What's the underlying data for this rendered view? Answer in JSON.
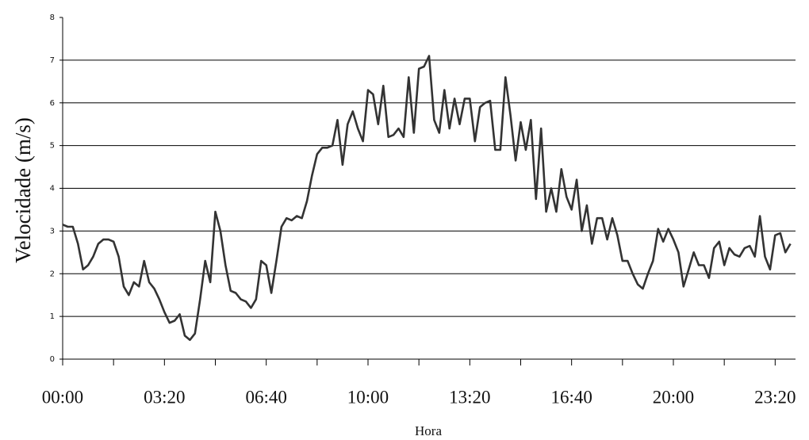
{
  "chart_data": {
    "type": "line",
    "x_label": "Hora",
    "y_label": "Velocidade (m/s)",
    "x": [
      0,
      10,
      20,
      30,
      40,
      50,
      60,
      70,
      80,
      90,
      100,
      110,
      120,
      130,
      140,
      150,
      160,
      170,
      180,
      190,
      200,
      210,
      220,
      230,
      240,
      250,
      260,
      270,
      280,
      290,
      300,
      310,
      320,
      330,
      340,
      350,
      360,
      370,
      380,
      390,
      400,
      410,
      420,
      430,
      440,
      450,
      460,
      470,
      480,
      490,
      500,
      510,
      520,
      530,
      540,
      550,
      560,
      570,
      580,
      590,
      600,
      610,
      620,
      630,
      640,
      650,
      660,
      670,
      680,
      690,
      700,
      710,
      720,
      730,
      740,
      750,
      760,
      770,
      780,
      790,
      800,
      810,
      820,
      830,
      840,
      850,
      860,
      870,
      880,
      890,
      900,
      910,
      920,
      930,
      940,
      950,
      960,
      970,
      980,
      990,
      1000,
      1010,
      1020,
      1030,
      1040,
      1050,
      1060,
      1070,
      1080,
      1090,
      1100,
      1110,
      1120,
      1130,
      1140,
      1150,
      1160,
      1170,
      1180,
      1190,
      1200,
      1210,
      1220,
      1230,
      1240,
      1250,
      1260,
      1270,
      1280,
      1290,
      1300,
      1310,
      1320,
      1330,
      1340,
      1350,
      1360,
      1370,
      1380,
      1390,
      1400,
      1410,
      1420,
      1430
    ],
    "series": [
      {
        "color": "#333333",
        "values": [
          3.15,
          3.1,
          3.1,
          2.7,
          2.1,
          2.2,
          2.4,
          2.7,
          2.8,
          2.8,
          2.75,
          2.4,
          1.7,
          1.5,
          1.8,
          1.7,
          2.3,
          1.8,
          1.65,
          1.4,
          1.1,
          0.85,
          0.9,
          1.05,
          0.55,
          0.45,
          0.6,
          1.4,
          2.3,
          1.8,
          3.45,
          3.0,
          2.2,
          1.6,
          1.55,
          1.4,
          1.35,
          1.2,
          1.4,
          2.3,
          2.2,
          1.55,
          2.3,
          3.1,
          3.3,
          3.25,
          3.35,
          3.3,
          3.7,
          4.3,
          4.8,
          4.95,
          4.95,
          5.0,
          5.6,
          4.55,
          5.5,
          5.8,
          5.4,
          5.1,
          6.3,
          6.2,
          5.5,
          6.4,
          5.2,
          5.25,
          5.4,
          5.2,
          6.6,
          5.3,
          6.8,
          6.85,
          7.1,
          5.6,
          5.3,
          6.3,
          5.4,
          6.1,
          5.5,
          6.1,
          6.1,
          5.1,
          5.9,
          6.0,
          6.05,
          4.9,
          4.9,
          6.6,
          5.7,
          4.65,
          5.55,
          4.9,
          5.6,
          3.75,
          5.4,
          3.45,
          4.0,
          3.45,
          4.45,
          3.8,
          3.5,
          4.2,
          3.0,
          3.6,
          2.7,
          3.3,
          3.3,
          2.8,
          3.3,
          2.9,
          2.3,
          2.3,
          2.0,
          1.75,
          1.65,
          2.0,
          2.3,
          3.05,
          2.75,
          3.05,
          2.8,
          2.5,
          1.7,
          2.1,
          2.5,
          2.2,
          2.2,
          1.9,
          2.6,
          2.75,
          2.2,
          2.6,
          2.45,
          2.4,
          2.6,
          2.65,
          2.4,
          3.35,
          2.4,
          2.1,
          2.9,
          2.95,
          2.5,
          2.7
        ]
      }
    ],
    "xlim": [
      0,
      1440
    ],
    "xticks": [
      {
        "value": 0,
        "label": "00:00"
      },
      {
        "value": 200,
        "label": "03:20"
      },
      {
        "value": 400,
        "label": "06:40"
      },
      {
        "value": 600,
        "label": "10:00"
      },
      {
        "value": 800,
        "label": "13:20"
      },
      {
        "value": 1000,
        "label": "16:40"
      },
      {
        "value": 1200,
        "label": "20:00"
      },
      {
        "value": 1400,
        "label": "23:20"
      }
    ],
    "xminorticks": [
      100,
      300,
      500,
      700,
      900,
      1100,
      1300
    ],
    "ylim": [
      0,
      8
    ],
    "yticks": [
      0,
      1,
      2,
      3,
      4,
      5,
      6,
      7,
      8
    ],
    "grid": true
  }
}
